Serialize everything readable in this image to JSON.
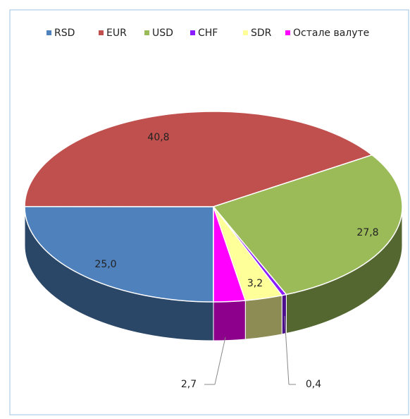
{
  "chart_data": {
    "type": "pie3d",
    "categories": [
      "RSD",
      "EUR",
      "USD",
      "CHF",
      "SDR",
      "Остале валуте"
    ],
    "values": [
      25.0,
      40.8,
      27.8,
      0.4,
      3.2,
      2.7
    ],
    "value_labels": [
      "25,0",
      "40,8",
      "27,8",
      "0,4",
      "3,2",
      "2,7"
    ],
    "colors": [
      "#4f81bd",
      "#c0504d",
      "#9bbb59",
      "#8b1cff",
      "#ffff99",
      "#ff00ff"
    ],
    "legend": "top"
  }
}
